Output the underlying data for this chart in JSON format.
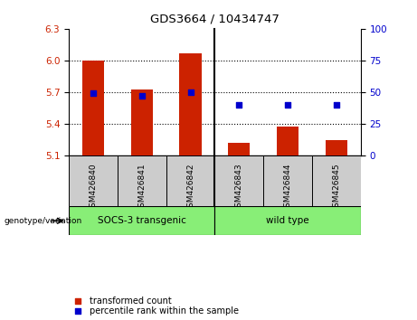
{
  "title": "GDS3664 / 10434747",
  "samples": [
    "GSM426840",
    "GSM426841",
    "GSM426842",
    "GSM426843",
    "GSM426844",
    "GSM426845"
  ],
  "bar_values": [
    6.0,
    5.72,
    6.07,
    5.22,
    5.37,
    5.24
  ],
  "bar_bottom": 5.1,
  "percentile_values": [
    5.69,
    5.665,
    5.695,
    5.575,
    5.575,
    5.575
  ],
  "ylim_left": [
    5.1,
    6.3
  ],
  "ylim_right": [
    0,
    100
  ],
  "yticks_left": [
    5.1,
    5.4,
    5.7,
    6.0,
    6.3
  ],
  "yticks_right": [
    0,
    25,
    50,
    75,
    100
  ],
  "bar_color": "#cc2200",
  "dot_color": "#0000cc",
  "group1_label": "SOCS-3 transgenic",
  "group2_label": "wild type",
  "group1_color": "#88ee77",
  "group2_color": "#88ee77",
  "sample_bg_color": "#cccccc",
  "xlabel_left": "genotype/variation",
  "legend_bar": "transformed count",
  "legend_dot": "percentile rank within the sample",
  "grid_yticks": [
    5.4,
    5.7,
    6.0
  ]
}
